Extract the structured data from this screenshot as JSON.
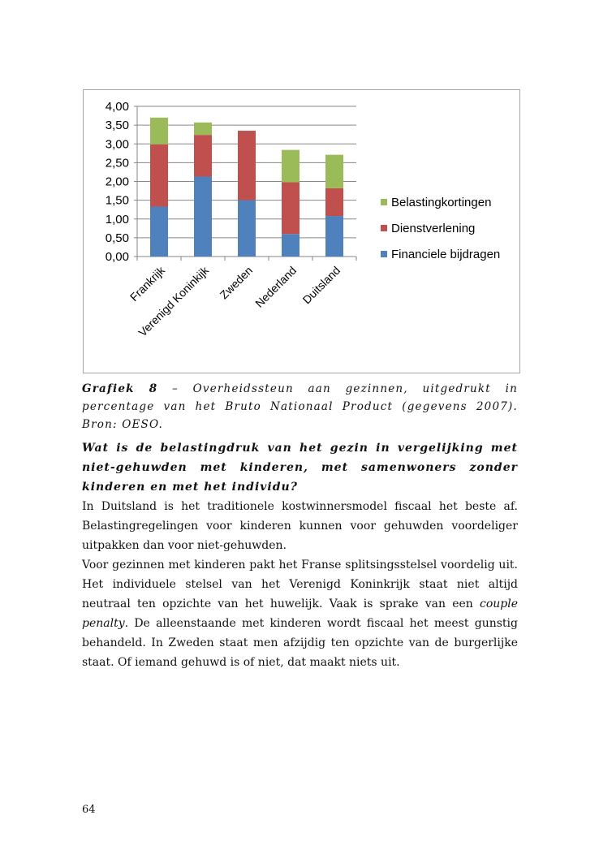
{
  "chart_data": {
    "type": "bar",
    "stacked": true,
    "categories": [
      "Frankrijk",
      "Verenigd Koninkijk",
      "Zweden",
      "Nederland",
      "Duitsland"
    ],
    "series": [
      {
        "name": "Financiele bijdragen",
        "color": "#4f81bd",
        "values": [
          1.33,
          2.13,
          1.5,
          0.6,
          1.08
        ]
      },
      {
        "name": "Dienstverlening",
        "color": "#c0504d",
        "values": [
          1.66,
          1.11,
          1.85,
          1.38,
          0.74
        ]
      },
      {
        "name": "Belastingkortingen",
        "color": "#9bbb59",
        "values": [
          0.71,
          0.33,
          0,
          0.86,
          0.89
        ]
      }
    ],
    "ylim": [
      0,
      4
    ],
    "yticks": [
      "0,00",
      "0,50",
      "1,00",
      "1,50",
      "2,00",
      "2,50",
      "3,00",
      "3,50",
      "4,00"
    ],
    "grid": true,
    "legend": "right"
  },
  "caption": {
    "label": "Grafiek 8",
    "text": " – Overheidssteun aan gezinnen, uitgedrukt in percentage van het Bruto Nationaal Product (gegevens 2007). Bron: OESO."
  },
  "question": "Wat is de belastingdruk van het gezin in vergelijking met niet-gehuwden met kinderen, met samenwoners zonder kinderen en met het individu?",
  "paragraph1": "In Duitsland is het traditionele kostwinnersmodel fiscaal het beste af. Belastingregelingen voor kinderen kunnen voor gehuwden voordeliger uitpakken dan voor niet-gehuwden.",
  "paragraph2": {
    "before": "Voor gezinnen met kinderen pakt het Franse splitsingsstelsel voordelig uit. Het individuele stelsel van het Verenigd Koninkrijk staat niet altijd neutraal ten opzichte van het huwelijk. Vaak is sprake van een ",
    "italic": "couple penalty",
    "after": ". De alleenstaande met kinderen wordt fiscaal het meest gunstig behandeld. In Zweden staat men afzijdig ten opzichte van de burgerlijke staat. Of iemand gehuwd is of niet, dat maakt niets uit."
  },
  "page_number": "64"
}
